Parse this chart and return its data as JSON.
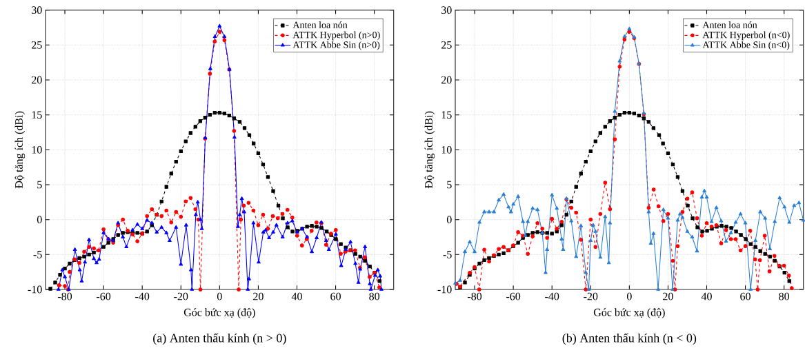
{
  "chart_data": [
    {
      "type": "line",
      "xlabel": "Góc bức xạ (độ)",
      "ylabel": "Độ tăng ích (dBi)",
      "annotations": [
        "(a) Anten thấu kính (n > 0)"
      ],
      "xlim": [
        -90,
        90
      ],
      "ylim": [
        -10,
        30
      ],
      "xticks": [
        -80,
        -60,
        -40,
        -20,
        0,
        20,
        40,
        60,
        80
      ],
      "yticks": [
        -10,
        -5,
        0,
        5,
        10,
        15,
        20,
        25,
        30
      ],
      "grid": true,
      "legend": "top right",
      "series": [
        {
          "name": "Anten loa nón",
          "color": "#000000",
          "marker": "square",
          "line_style": "dashed",
          "x": [
            -87.5,
            -85,
            -82.5,
            -80,
            -77.5,
            -75,
            -72.5,
            -70,
            -67.5,
            -65,
            -60,
            -57.5,
            -55,
            -52.5,
            -50,
            -47.5,
            -45,
            -42.5,
            -40,
            -37.5,
            -35,
            -32.5,
            -30,
            -27.5,
            -25,
            -22.5,
            -20,
            -17.5,
            -15,
            -12.5,
            -10,
            -7.5,
            -5,
            -2.5,
            0,
            2.5,
            5,
            7.5,
            10.4,
            12.9,
            15.4,
            17.6,
            20,
            22.5,
            25,
            27.7,
            30.4,
            32.7,
            35.2,
            37.7,
            40.2,
            42.7,
            45.2,
            47.7,
            50.2,
            52.7,
            55.4,
            57.7,
            60.1,
            62.7,
            65.2,
            67.7,
            70.2,
            72.7,
            75.2,
            77.7,
            80.2,
            82.7
          ],
          "values": [
            -9.9,
            -9.0,
            -7.9,
            -7.0,
            -6.3,
            -5.8,
            -5.5,
            -5.3,
            -5.0,
            -4.7,
            -3.9,
            -3.3,
            -2.8,
            -2.2,
            -1.9,
            -1.8,
            -1.9,
            -1.9,
            -2.0,
            -1.7,
            -0.8,
            0.7,
            2.6,
            4.7,
            6.6,
            8.3,
            9.8,
            11.2,
            12.4,
            13.3,
            14.1,
            14.6,
            15.0,
            15.3,
            15.3,
            15.2,
            14.9,
            14.5,
            14.0,
            13.1,
            12.1,
            10.9,
            9.5,
            7.9,
            6.1,
            4.1,
            2.0,
            0.2,
            -1.1,
            -1.7,
            -1.6,
            -1.3,
            -1.0,
            -0.9,
            -1.0,
            -1.2,
            -1.7,
            -2.2,
            -2.8,
            -3.5,
            -4.0,
            -4.4,
            -4.9,
            -5.3,
            -5.9,
            -6.7,
            -7.6,
            -8.8
          ]
        },
        {
          "name": "ATTK Hyperbol (n>0)",
          "color": "#ff0000",
          "marker": "circle",
          "line_style": "dashed",
          "x": [
            -83,
            -80,
            -78.3,
            -77.5,
            -75,
            -72.5,
            -70,
            -67.5,
            -65,
            -62.5,
            -60,
            -57.5,
            -55,
            -52.5,
            -50,
            -47.5,
            -45,
            -42.5,
            -40,
            -37.5,
            -35,
            -32.5,
            -30,
            -27.5,
            -25,
            -22.5,
            -20,
            -17.5,
            -15,
            -12.5,
            -11,
            -9.9,
            -7.5,
            -5,
            -2.5,
            0,
            2.5,
            5,
            7.5,
            9.9,
            11,
            12.5,
            15,
            17.5,
            20,
            22.5,
            25,
            27.5,
            30.1,
            32.5,
            35.1,
            37.6,
            40.1,
            42.6,
            45.1,
            47.6,
            50.1,
            52.6,
            55.1,
            57.6,
            60.1,
            62.6,
            65.1,
            67.6,
            70.1,
            72.6,
            75.1,
            77.6,
            80.1,
            82.6
          ],
          "values": [
            -9.4,
            -9.5,
            -10,
            -7.5,
            -5.7,
            -6.2,
            -4.6,
            -3.9,
            -4.1,
            -4.4,
            -1.4,
            -2.8,
            -3.3,
            -0.8,
            0,
            -1.6,
            -2.1,
            -3.1,
            -2.0,
            0.5,
            1.5,
            0.7,
            0.5,
            1.3,
            -0.4,
            1.1,
            0.4,
            2.6,
            3.1,
            1.5,
            0,
            -10,
            11.6,
            20.9,
            25.5,
            26.9,
            25.7,
            21.5,
            12.7,
            -10,
            0,
            2.0,
            2.4,
            1.3,
            -0.8,
            0.7,
            -1.3,
            0.5,
            0.2,
            0.8,
            1.4,
            0.3,
            -2.3,
            -3.7,
            -2.8,
            -1.6,
            -0.4,
            -0.5,
            -3.6,
            -2.0,
            -1.5,
            -4.9,
            -4.6,
            -4.4,
            -4.4,
            -6.9,
            -5.4,
            -8.2,
            -7.6,
            -9.7
          ]
        },
        {
          "name": "ATTK Abbe Sin (n>0)",
          "color": "#0000ff",
          "marker": "triangle",
          "line_style": "solid",
          "x": [
            -83.3,
            -81.3,
            -80,
            -78,
            -74.8,
            -72.3,
            -71.3,
            -69.6,
            -67.5,
            -65,
            -63.6,
            -62.3,
            -60,
            -57.5,
            -55,
            -52.5,
            -50,
            -48.2,
            -45,
            -42.5,
            -40,
            -37.5,
            -35,
            -32.5,
            -30,
            -27.5,
            -25.8,
            -22.5,
            -20,
            -17.3,
            -14.8,
            -14.3,
            -12.3,
            -11.3,
            -9.9,
            -9.2,
            -7.4,
            -4.8,
            -2.4,
            0,
            2.5,
            5.1,
            7.7,
            9.5,
            10.4,
            11.5,
            12.7,
            14.6,
            15.2,
            17.5,
            20.2,
            22.6,
            23.8,
            25.6,
            27.7,
            29.4,
            32.6,
            35.1,
            37.6,
            40.1,
            42.7,
            45.2,
            47.7,
            50.2,
            52.6,
            55.1,
            56.5,
            60.1,
            62.9,
            65.2,
            67.7,
            70.2,
            71.8,
            72.7,
            75.2,
            77.7,
            78.2,
            80.4,
            81.8,
            83,
            83.7
          ],
          "values": [
            -10,
            -7.2,
            -8.2,
            -10,
            -4.3,
            -7.2,
            -8.8,
            -6.1,
            -2.9,
            -5.6,
            -6.2,
            -5.7,
            -1.9,
            -2.8,
            -3.0,
            -0.5,
            -2.5,
            -3.9,
            -1.5,
            -0.7,
            -1.3,
            -0.1,
            -0.5,
            -1.8,
            -1.1,
            -1.9,
            -3.0,
            -1.1,
            -6.4,
            -0.8,
            -7.2,
            -10,
            0.7,
            2.5,
            0,
            -1.3,
            11.7,
            21.6,
            26.2,
            27.7,
            26.2,
            21.5,
            11.8,
            -1.0,
            0.7,
            3.0,
            1.1,
            -10,
            -8.5,
            -0.5,
            -6.1,
            -1.8,
            -1.5,
            -2.6,
            -1.8,
            -0.8,
            -2.5,
            -0.5,
            -0.2,
            -1.8,
            -1.3,
            -2.5,
            -4.6,
            -2.6,
            -0.4,
            -3.0,
            -4.3,
            -2.1,
            -6.6,
            -4.3,
            -3.2,
            -6.3,
            -9.0,
            -7.1,
            -3.9,
            -9.2,
            -10,
            -8.0,
            -7.2,
            -8.1,
            -10
          ]
        }
      ]
    },
    {
      "type": "line",
      "xlabel": "Góc bức xạ (độ)",
      "ylabel": "Độ tăng ích (dBi)",
      "annotations": [
        "(b) Anten thấu kính (n < 0)"
      ],
      "xlim": [
        -90,
        90
      ],
      "ylim": [
        -10,
        30
      ],
      "xticks": [
        -80,
        -60,
        -40,
        -20,
        0,
        20,
        40,
        60,
        80
      ],
      "yticks": [
        -10,
        -5,
        0,
        5,
        10,
        15,
        20,
        25,
        30
      ],
      "grid": true,
      "legend": "top right",
      "series": [
        {
          "name": "Anten loa nón",
          "color": "#000000",
          "marker": "square",
          "line_style": "dashed",
          "x": [
            -87.5,
            -85,
            -82.5,
            -80,
            -77.5,
            -75,
            -72.5,
            -70,
            -67.5,
            -65,
            -62.5,
            -60,
            -57.5,
            -55,
            -52.5,
            -50,
            -47.5,
            -45,
            -42.5,
            -40,
            -37.5,
            -35,
            -32.5,
            -30,
            -27.5,
            -25,
            -22.5,
            -20,
            -17.5,
            -15,
            -12.5,
            -10,
            -7.5,
            -5,
            -2.5,
            0,
            2.5,
            5,
            7.5,
            10,
            12.5,
            15.4,
            17.4,
            20,
            22.5,
            25,
            27.5,
            30.2,
            32.7,
            35.2,
            37.7,
            40.2,
            42.7,
            45.2,
            47.7,
            50.2,
            52.7,
            55.2,
            57.7,
            60.2,
            62.7,
            65.2,
            67.7,
            70.2,
            72.7,
            75.2,
            77.7,
            80.2,
            82.7
          ],
          "values": [
            -9.7,
            -9.0,
            -7.9,
            -7.0,
            -6.3,
            -5.8,
            -5.5,
            -5.2,
            -5.0,
            -4.8,
            -4.4,
            -3.8,
            -3.3,
            -2.6,
            -2.2,
            -1.9,
            -1.8,
            -1.9,
            -1.9,
            -2.0,
            -1.7,
            -0.8,
            0.7,
            2.6,
            4.7,
            6.6,
            8.3,
            9.8,
            11.2,
            12.4,
            13.3,
            14.1,
            14.6,
            15.0,
            15.3,
            15.3,
            15.2,
            14.9,
            14.5,
            14.0,
            13.1,
            12.1,
            10.9,
            9.5,
            7.9,
            6.1,
            4.1,
            2.0,
            0.2,
            -1.1,
            -1.7,
            -1.6,
            -1.3,
            -1.0,
            -0.9,
            -1.0,
            -1.2,
            -1.7,
            -2.2,
            -2.8,
            -3.5,
            -3.9,
            -4.5,
            -4.9,
            -5.3,
            -5.9,
            -6.7,
            -7.6,
            -8.8
          ]
        },
        {
          "name": "ATTK Hyperbol (n<0)",
          "color": "#ff0000",
          "marker": "circle",
          "line_style": "dashed",
          "x": [
            -89.3,
            -87.5,
            -82.5,
            -80,
            -77.6,
            -75,
            -72.5,
            -70,
            -67.5,
            -65,
            -62.5,
            -60,
            -57.5,
            -55,
            -52.5,
            -50,
            -47.5,
            -45,
            -42.5,
            -40,
            -37.5,
            -35,
            -32.5,
            -30,
            -27.5,
            -25,
            -22.5,
            -20,
            -17.5,
            -15,
            -12.5,
            -10,
            -7.5,
            -5,
            -2.5,
            0,
            2.5,
            5,
            7.5,
            10,
            12.6,
            15.1,
            17.6,
            20,
            22.5,
            23.6,
            25,
            27.5,
            30,
            32.5,
            35,
            37.5,
            40,
            42.5,
            45,
            47.5,
            50,
            52.5,
            55,
            57.5,
            60,
            62.5,
            65,
            66.4,
            67.5,
            70,
            72.5,
            75,
            77.5,
            80,
            82.5,
            84
          ],
          "values": [
            -9.2,
            -9.6,
            -7.6,
            -6.8,
            -10,
            -4.3,
            -6.0,
            -5.1,
            -4.2,
            -3.9,
            -4.4,
            -3.7,
            -1.8,
            -2.3,
            -4.9,
            -2.4,
            -0.5,
            -1.3,
            -2.6,
            0.1,
            -1.3,
            -0.3,
            2.9,
            1.7,
            1.0,
            -2.9,
            -10,
            0,
            -3.9,
            0.8,
            5.3,
            1.5,
            11.5,
            21.9,
            25.8,
            26.9,
            26.0,
            22.3,
            15.1,
            1.7,
            4.3,
            1.9,
            -0.2,
            0.8,
            -5.9,
            -10,
            -3.8,
            1.1,
            3.0,
            3.9,
            0.2,
            -2.3,
            -0.5,
            -1.0,
            -0.8,
            -3.4,
            -1.5,
            -2.8,
            -2.8,
            -4.4,
            -3.8,
            -1.6,
            -5.7,
            -10,
            -5.8,
            -2.3,
            -7.4,
            -5.2,
            -6.6,
            -6.6,
            -8.0,
            -9.8
          ]
        },
        {
          "name": "ATTK Abbe Sin (n<0)",
          "color": "#2a7fd4",
          "marker": "triangle",
          "line_style": "solid",
          "x": [
            -90,
            -87.5,
            -85,
            -82.5,
            -80,
            -77.5,
            -75,
            -72.5,
            -70,
            -67.5,
            -65,
            -62.5,
            -61.2,
            -60,
            -57.5,
            -55,
            -53.8,
            -52.5,
            -50,
            -47.5,
            -45,
            -43.3,
            -42.5,
            -40,
            -37.5,
            -35,
            -34.2,
            -32.5,
            -30,
            -27.5,
            -25,
            -22.5,
            -21,
            -20,
            -18.7,
            -17.5,
            -15,
            -12.5,
            -10.6,
            -10,
            -7.5,
            -5,
            -2.5,
            0,
            2.5,
            5,
            7.5,
            10,
            11.1,
            12.5,
            14.9,
            17.6,
            20,
            22.4,
            25,
            26.2,
            27.5,
            30,
            32.5,
            35,
            37.5,
            38.8,
            40,
            42.5,
            45,
            47.5,
            50,
            52.5,
            55,
            57.5,
            60,
            62.7,
            65.2,
            67.7,
            70.2,
            72.7,
            75.2,
            77.7,
            80.2,
            82.7,
            85.2,
            87.7,
            90
          ],
          "values": [
            -9.1,
            -8.7,
            -4.6,
            -3.2,
            -4.6,
            -0.4,
            1.1,
            1.1,
            1.1,
            2.8,
            3.6,
            1.8,
            1.1,
            2.2,
            3.3,
            -0.3,
            -2.3,
            -0.3,
            1.6,
            1.4,
            -1.9,
            -7.6,
            -4.3,
            3.5,
            1.6,
            -2.8,
            -4.3,
            3.0,
            -0.2,
            -5.3,
            -0.9,
            -7.6,
            -10,
            -3.0,
            -0.8,
            -1.7,
            -5.4,
            0.4,
            -6.2,
            -0.5,
            15.5,
            22.7,
            26.2,
            27.3,
            26.1,
            22.3,
            15.2,
            1.1,
            -3.4,
            -2.0,
            -10,
            1.4,
            0.2,
            -10,
            -0.1,
            0.8,
            0.3,
            -1.7,
            -2.5,
            -4.5,
            3.2,
            4.1,
            3.2,
            -0.3,
            1.7,
            -0.2,
            -3.1,
            -1.9,
            -0.4,
            0.8,
            -0.5,
            -10,
            -3.0,
            1.1,
            0.2,
            -4.2,
            -0.3,
            3.1,
            1.8,
            -0.4,
            2.0,
            2.4,
            -0.1
          ]
        }
      ]
    }
  ]
}
